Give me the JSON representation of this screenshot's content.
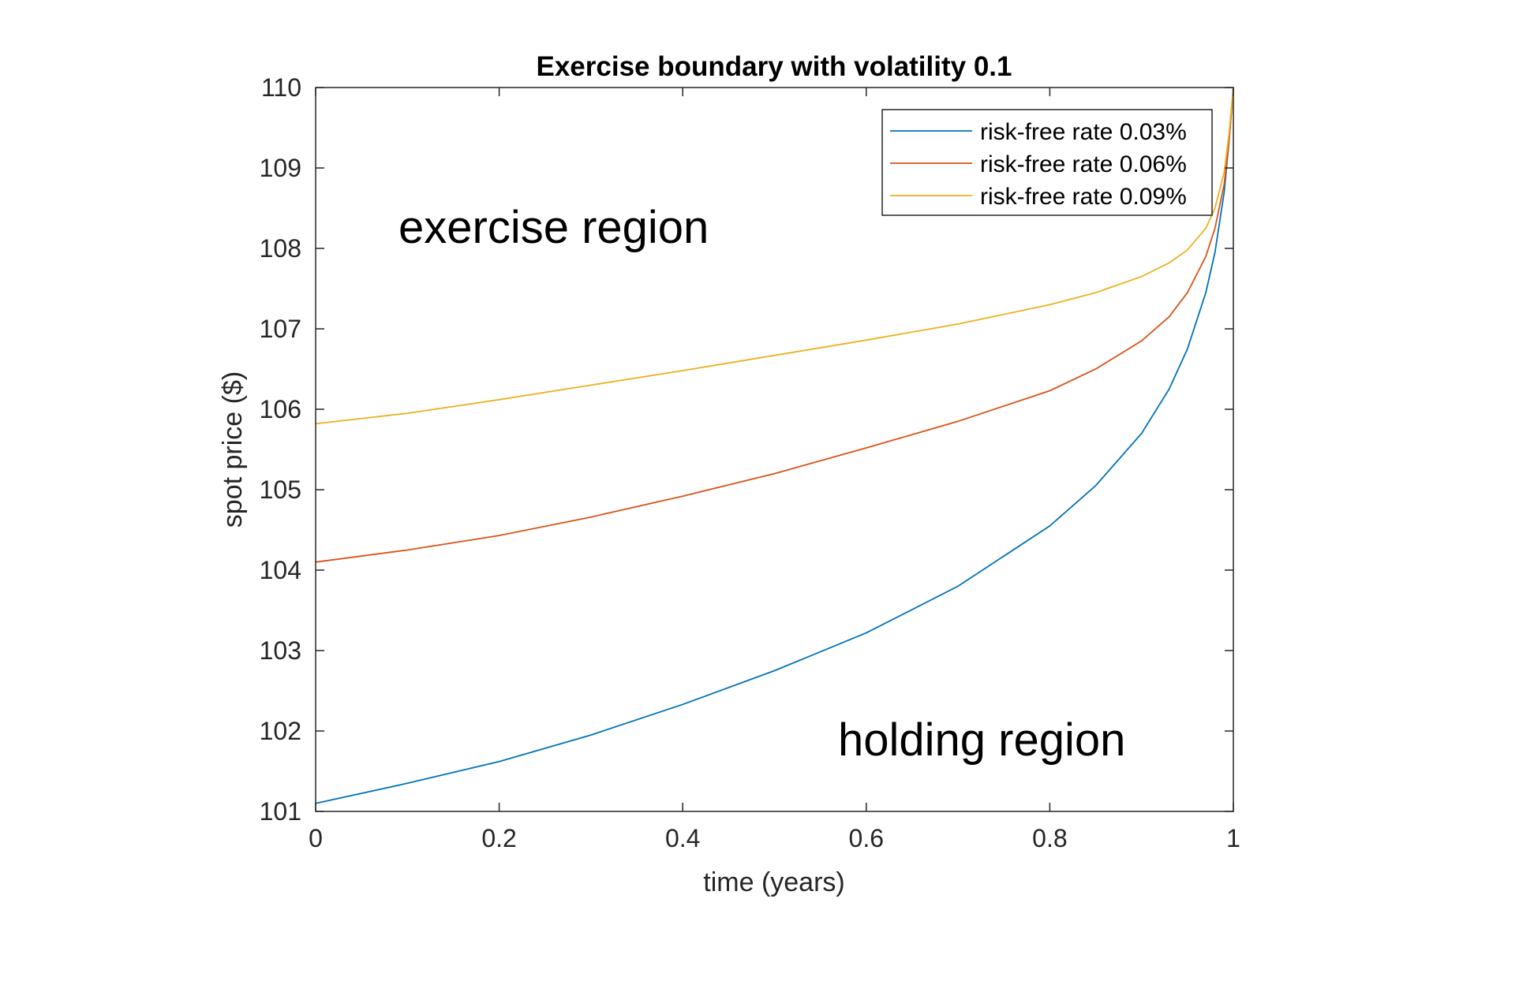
{
  "chart_data": {
    "type": "line",
    "title": "Exercise boundary with volatility 0.1",
    "xlabel": "time (years)",
    "ylabel": "spot price ($)",
    "xlim": [
      0,
      1
    ],
    "ylim": [
      101,
      110
    ],
    "x_ticks": [
      "0",
      "0.2",
      "0.4",
      "0.6",
      "0.8",
      "1"
    ],
    "y_ticks": [
      "101",
      "102",
      "103",
      "104",
      "105",
      "106",
      "107",
      "108",
      "109",
      "110"
    ],
    "grid": false,
    "legend_position": "top-right",
    "annotations": [
      {
        "text": "exercise region",
        "x": 0.28,
        "y": 108.25
      },
      {
        "text": "holding region",
        "x": 0.75,
        "y": 101.9
      }
    ],
    "series": [
      {
        "name": "risk-free rate 0.03%",
        "color": "#0072BD",
        "x": [
          0,
          0.1,
          0.2,
          0.3,
          0.4,
          0.5,
          0.6,
          0.7,
          0.8,
          0.85,
          0.9,
          0.93,
          0.95,
          0.97,
          0.98,
          0.99,
          0.995,
          1.0
        ],
        "y": [
          101.1,
          101.35,
          101.62,
          101.95,
          102.33,
          102.75,
          103.22,
          103.8,
          104.55,
          105.05,
          105.7,
          106.25,
          106.75,
          107.45,
          107.95,
          108.7,
          109.3,
          110
        ]
      },
      {
        "name": "risk-free rate 0.06%",
        "color": "#D95319",
        "x": [
          0,
          0.1,
          0.2,
          0.3,
          0.4,
          0.5,
          0.6,
          0.7,
          0.8,
          0.85,
          0.9,
          0.93,
          0.95,
          0.97,
          0.98,
          0.99,
          0.995,
          1.0
        ],
        "y": [
          104.1,
          104.25,
          104.43,
          104.66,
          104.92,
          105.2,
          105.52,
          105.85,
          106.23,
          106.5,
          106.85,
          107.15,
          107.45,
          107.9,
          108.25,
          108.8,
          109.3,
          110
        ]
      },
      {
        "name": "risk-free rate 0.09%",
        "color": "#EDB120",
        "x": [
          0,
          0.1,
          0.2,
          0.3,
          0.4,
          0.5,
          0.6,
          0.7,
          0.8,
          0.85,
          0.9,
          0.93,
          0.95,
          0.97,
          0.98,
          0.99,
          0.995,
          1.0
        ],
        "y": [
          105.82,
          105.95,
          106.12,
          106.3,
          106.48,
          106.67,
          106.86,
          107.06,
          107.3,
          107.45,
          107.65,
          107.82,
          107.98,
          108.25,
          108.5,
          108.95,
          109.4,
          110
        ]
      }
    ]
  }
}
